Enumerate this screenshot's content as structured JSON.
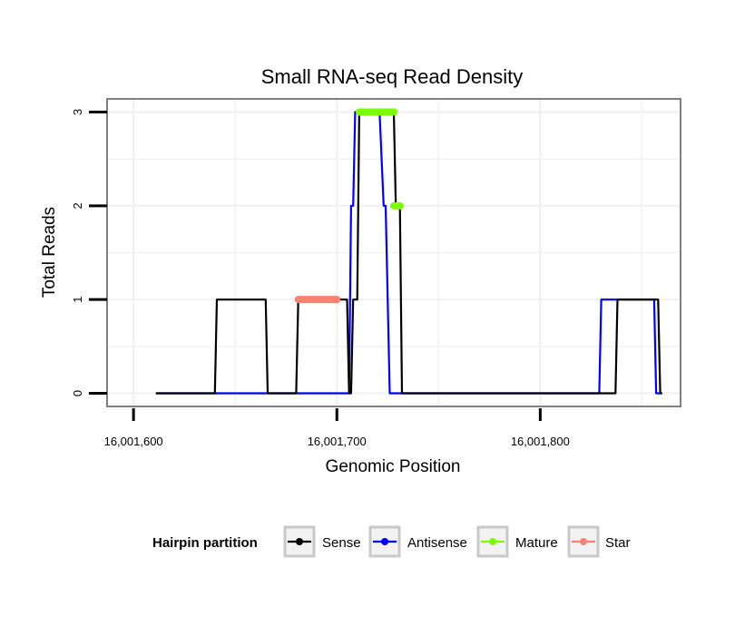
{
  "chart_data": {
    "type": "line",
    "title": "Small RNA-seq Read Density",
    "xlabel": "Genomic Position",
    "ylabel": "Total Reads",
    "xlim": [
      16001587,
      16001869
    ],
    "ylim": [
      -0.14,
      3.14
    ],
    "x_ticks": [
      {
        "value": 16001600,
        "label": "16,001,600"
      },
      {
        "value": 16001700,
        "label": "16,001,700"
      },
      {
        "value": 16001800,
        "label": "16,001,800"
      }
    ],
    "y_ticks": [
      {
        "value": 0,
        "label": "0"
      },
      {
        "value": 1,
        "label": "1"
      },
      {
        "value": 2,
        "label": "2"
      },
      {
        "value": 3,
        "label": "3"
      }
    ],
    "legend": {
      "title": "Hairpin partition",
      "position": "bottom",
      "entries": [
        {
          "name": "Sense",
          "color": "#000000"
        },
        {
          "name": "Antisense",
          "color": "#0000ff"
        },
        {
          "name": "Mature",
          "color": "#7cfc00"
        },
        {
          "name": "Star",
          "color": "#fa8072"
        }
      ]
    },
    "series": [
      {
        "name": "Sense",
        "color": "#000000",
        "kind": "line",
        "points": [
          [
            16001611,
            0
          ],
          [
            16001640,
            0
          ],
          [
            16001641,
            1
          ],
          [
            16001665,
            1
          ],
          [
            16001666,
            0
          ],
          [
            16001680,
            0
          ],
          [
            16001681,
            1
          ],
          [
            16001705,
            1
          ],
          [
            16001706,
            0
          ],
          [
            16001707,
            0
          ],
          [
            16001708,
            1
          ],
          [
            16001710,
            1
          ],
          [
            16001711,
            3
          ],
          [
            16001728,
            3
          ],
          [
            16001729,
            2
          ],
          [
            16001731,
            2
          ],
          [
            16001732,
            0
          ],
          [
            16001837,
            0
          ],
          [
            16001838,
            1
          ],
          [
            16001858,
            1
          ],
          [
            16001859,
            0
          ],
          [
            16001860,
            0
          ]
        ]
      },
      {
        "name": "Antisense",
        "color": "#0000ff",
        "kind": "line",
        "points": [
          [
            16001611,
            0
          ],
          [
            16001702,
            0
          ],
          [
            16001706,
            0
          ],
          [
            16001707,
            2
          ],
          [
            16001708,
            2
          ],
          [
            16001709,
            3
          ],
          [
            16001721,
            3
          ],
          [
            16001723,
            2
          ],
          [
            16001724,
            2
          ],
          [
            16001726,
            0
          ],
          [
            16001829,
            0
          ],
          [
            16001830,
            1
          ],
          [
            16001856,
            1
          ],
          [
            16001857,
            0
          ],
          [
            16001859,
            0
          ]
        ]
      },
      {
        "name": "Mature",
        "color": "#7cfc00",
        "kind": "segment",
        "segments": [
          {
            "x": [
              16001711,
              16001728
            ],
            "y": 3
          },
          {
            "x": [
              16001728,
              16001731
            ],
            "y": 2
          }
        ]
      },
      {
        "name": "Star",
        "color": "#fa8072",
        "kind": "segment",
        "segments": [
          {
            "x": [
              16001681,
              16001700
            ],
            "y": 1
          }
        ]
      }
    ]
  }
}
